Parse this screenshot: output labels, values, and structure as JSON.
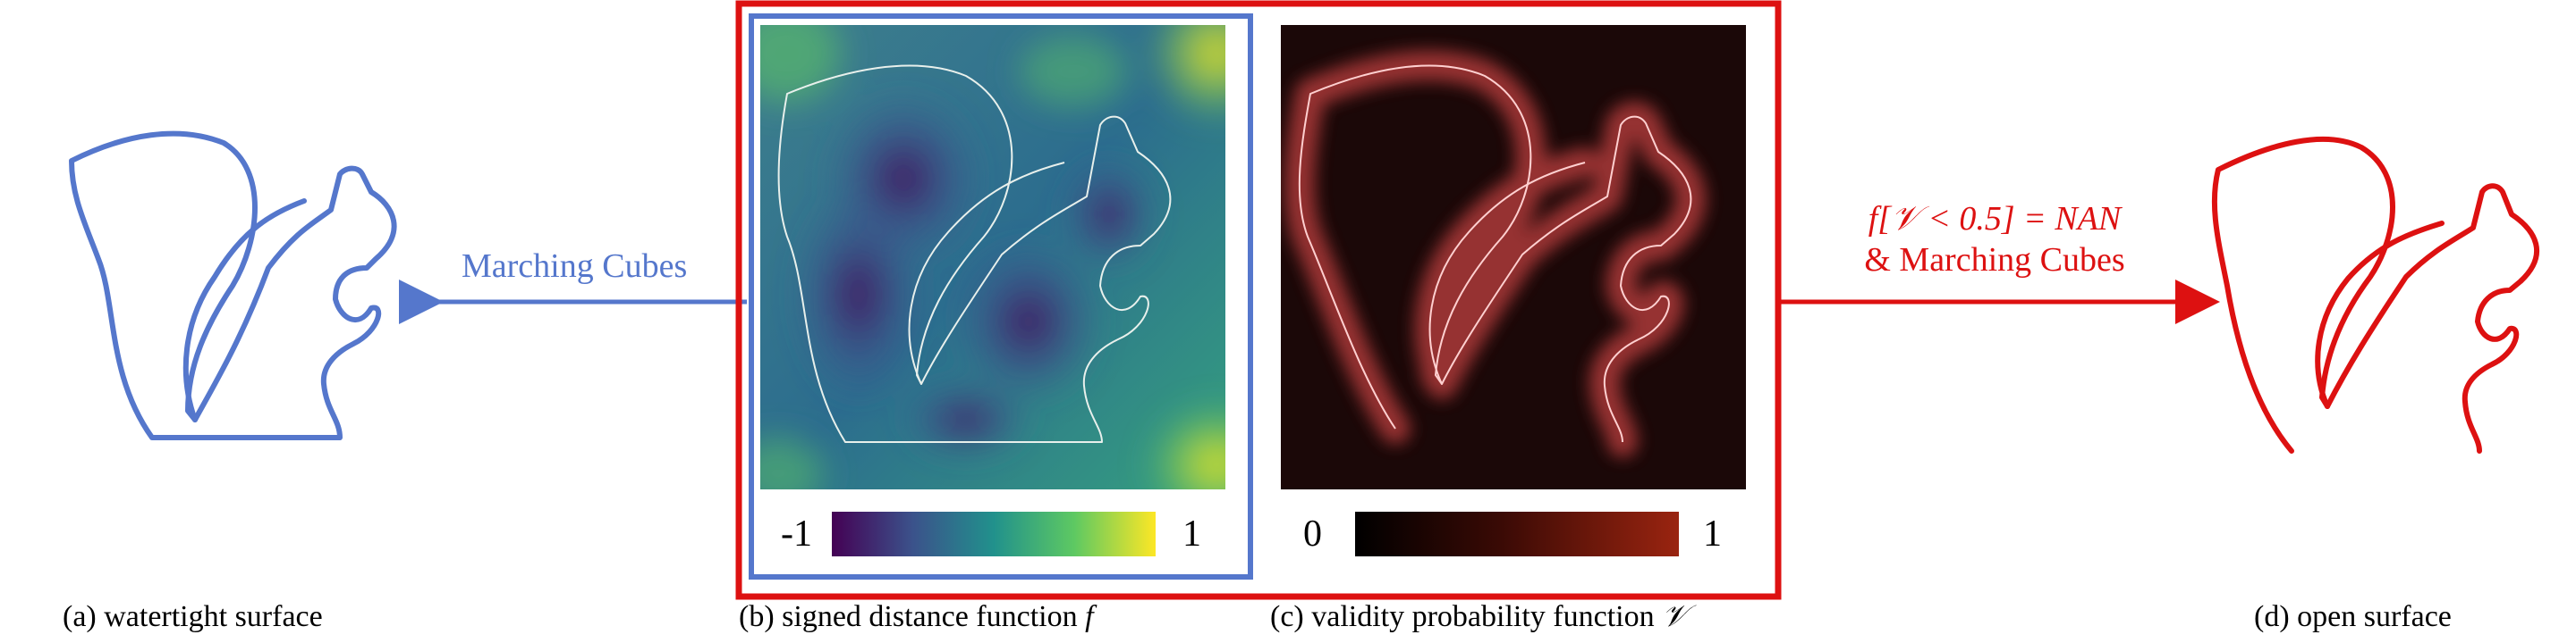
{
  "colors": {
    "blue": "#5577cc",
    "red": "#dd1111",
    "viridis_start": "#440154",
    "viridis_mid": "#21918c",
    "viridis_end": "#fde725",
    "validity_bg": "#1b0808",
    "validity_glow": "#ff8080"
  },
  "panels": {
    "a": {
      "caption": "(a)  watertight surface"
    },
    "b": {
      "caption": "(b) signed distance function ",
      "symbol": "f",
      "colorbar": {
        "min": "-1",
        "max": "1",
        "colormap": "viridis"
      }
    },
    "c": {
      "caption": "(c) validity probability function ",
      "symbol": "𝒱",
      "colorbar": {
        "min": "0",
        "max": "1",
        "colormap": "black-red"
      }
    },
    "d": {
      "caption": "(d) open surface"
    }
  },
  "arrows": {
    "left": {
      "label": "Marching Cubes",
      "direction": "left"
    },
    "right": {
      "label_line1": "f[𝒱 < 0.5] = NAN",
      "label_line2": "& Marching Cubes",
      "direction": "right"
    }
  }
}
